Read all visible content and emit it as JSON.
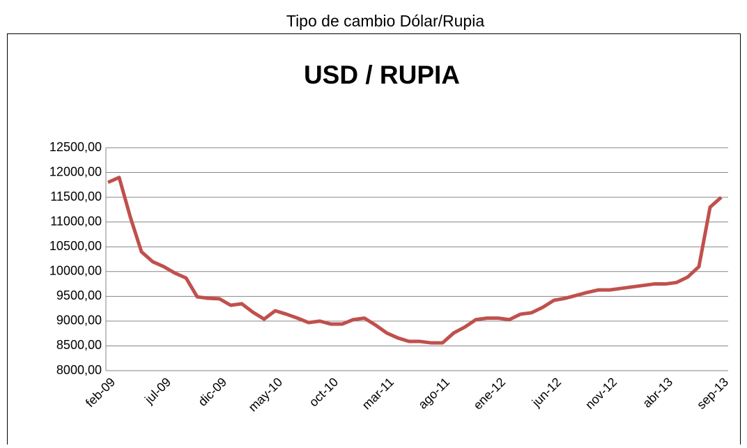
{
  "caption": "Tipo de cambio Dólar/Rupia",
  "chart_data": {
    "type": "line",
    "title": "USD / RUPIA",
    "categories": [
      "feb-09",
      null,
      null,
      null,
      null,
      "jul-09",
      null,
      null,
      null,
      null,
      "dic-09",
      null,
      null,
      null,
      null,
      "may-10",
      null,
      null,
      null,
      null,
      "oct-10",
      null,
      null,
      null,
      null,
      "mar-11",
      null,
      null,
      null,
      null,
      "ago-11",
      null,
      null,
      null,
      null,
      "ene-12",
      null,
      null,
      null,
      null,
      "jun-12",
      null,
      null,
      null,
      null,
      "nov-12",
      null,
      null,
      null,
      null,
      "abr-13",
      null,
      null,
      null,
      null,
      "sep-13"
    ],
    "series": [
      {
        "name": "USD / RUPIA",
        "color": "#c0504d",
        "values": [
          11800,
          11900,
          11100,
          10400,
          10200,
          10100,
          9970,
          9870,
          9490,
          9460,
          9450,
          9320,
          9350,
          9180,
          9040,
          9210,
          9140,
          9060,
          8970,
          9000,
          8940,
          8940,
          9030,
          9060,
          8920,
          8760,
          8660,
          8590,
          8590,
          8560,
          8560,
          8760,
          8880,
          9030,
          9060,
          9060,
          9030,
          9140,
          9170,
          9280,
          9420,
          9460,
          9520,
          9580,
          9630,
          9630,
          9660,
          9690,
          9720,
          9750,
          9750,
          9780,
          9890,
          10100,
          11300,
          11500
        ]
      }
    ],
    "ylim": [
      8000,
      12500
    ],
    "yticks": [
      {
        "value": 8000,
        "label": "8000,00"
      },
      {
        "value": 8500,
        "label": "8500,00"
      },
      {
        "value": 9000,
        "label": "9000,00"
      },
      {
        "value": 9500,
        "label": "9500,00"
      },
      {
        "value": 10000,
        "label": "10000,00"
      },
      {
        "value": 10500,
        "label": "10500,00"
      },
      {
        "value": 11000,
        "label": "11000,00"
      },
      {
        "value": 11500,
        "label": "11500,00"
      },
      {
        "value": 12000,
        "label": "12000,00"
      },
      {
        "value": 12500,
        "label": "12500,00"
      }
    ],
    "grid": true
  }
}
